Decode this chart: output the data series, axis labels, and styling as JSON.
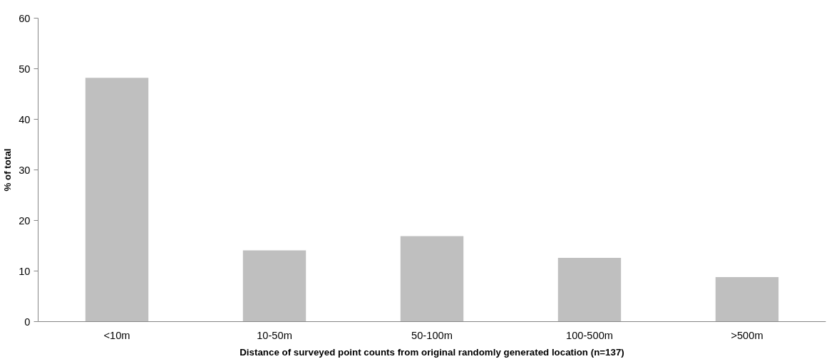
{
  "chart_data": {
    "type": "bar",
    "categories": [
      "<10m",
      "10-50m",
      "50-100m",
      "100-500m",
      ">500m"
    ],
    "values": [
      48.2,
      14.1,
      16.9,
      12.6,
      8.8
    ],
    "color": "#bfbfbf",
    "xlabel": "Distance of surveyed point counts from original randomly generated location (n=137)",
    "ylabel": "% of total",
    "ylim": [
      0,
      60
    ],
    "yticks": [
      0,
      10,
      20,
      30,
      40,
      50,
      60
    ],
    "grid": false
  }
}
